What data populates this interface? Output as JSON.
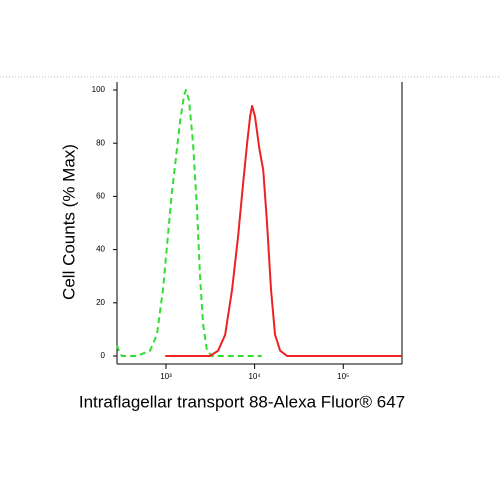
{
  "chart_data": {
    "type": "line",
    "xlabel": "Intraflagellar transport 88-Alexa Fluor® 647",
    "ylabel": "Cell Counts (% Max)",
    "xscale": "log",
    "xlim": [
      280,
      460000
    ],
    "ylim": [
      -3,
      103
    ],
    "xticks": [
      {
        "value": 1000,
        "label": "10³"
      },
      {
        "value": 10000,
        "label": "10⁴"
      },
      {
        "value": 100000,
        "label": "10⁵"
      }
    ],
    "yticks": [
      0,
      20,
      40,
      60,
      80,
      100
    ],
    "series": [
      {
        "color": "#33dd33",
        "line_style": "dashed",
        "x": [
          280,
          300,
          320,
          470,
          660,
          790,
          925,
          1050,
          1170,
          1300,
          1440,
          1600,
          1680,
          1820,
          2020,
          2240,
          2420,
          2620,
          2900,
          3300,
          12000
        ],
        "values": [
          4,
          1,
          0,
          0,
          2,
          8,
          25,
          45,
          62,
          75,
          88,
          98,
          100,
          96,
          80,
          55,
          30,
          12,
          2,
          0,
          0
        ]
      },
      {
        "color": "#ee2222",
        "line_style": "solid",
        "x": [
          980,
          3140,
          3870,
          4650,
          5570,
          6510,
          7420,
          8230,
          8890,
          9370,
          10100,
          11300,
          12500,
          13800,
          15300,
          17000,
          19400,
          23300,
          460000
        ],
        "values": [
          0,
          0,
          2,
          8,
          25,
          45,
          65,
          80,
          90,
          94,
          90,
          78,
          70,
          50,
          25,
          8,
          2,
          0,
          0
        ]
      }
    ]
  }
}
